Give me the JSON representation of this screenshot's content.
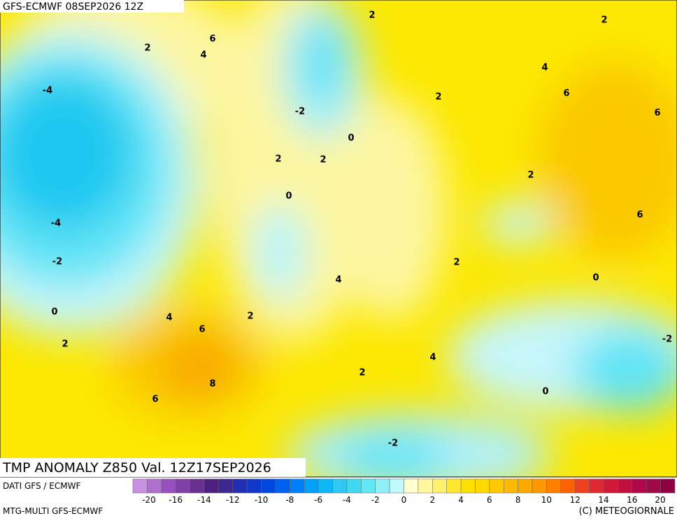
{
  "header": {
    "run": "GFS-ECMWF 08SEP2026 12Z",
    "title": "TMP ANOMALY Z850 Val. 12Z17SEP2026"
  },
  "contour_labels": [
    "2",
    "2",
    "6",
    "4",
    "2",
    "4",
    "-4",
    "6",
    "2",
    "-2",
    "6",
    "0",
    "2",
    "2",
    "2",
    "0",
    "6",
    "-4",
    "-2",
    "2",
    "0",
    "4",
    "0",
    "2",
    "4",
    "6",
    "2",
    "-2",
    "4",
    "2",
    "8",
    "0",
    "6",
    "-2"
  ],
  "footer": {
    "source": "DATI GFS / ECMWF",
    "model": "MTG-MULTI GFS-ECMWF",
    "copyright": "(C) METEOGIORNALE"
  },
  "colorbar": {
    "colors": [
      "#c890e0",
      "#b070d0",
      "#9850c0",
      "#8040a8",
      "#683090",
      "#502080",
      "#3c2890",
      "#2030b0",
      "#1038c8",
      "#0048e0",
      "#0060f0",
      "#0080f8",
      "#00a0f8",
      "#10b8f8",
      "#30c8f0",
      "#40d8f0",
      "#60e8f8",
      "#90f0f8",
      "#c0f8fc",
      "#ffffd0",
      "#fff8a0",
      "#fff070",
      "#ffe830",
      "#ffe000",
      "#ffd800",
      "#ffc800",
      "#ffb800",
      "#ffa800",
      "#ff9800",
      "#ff8000",
      "#ff6000",
      "#f04020",
      "#e02830",
      "#d01838",
      "#c01040",
      "#b00848",
      "#a00848",
      "#900040"
    ],
    "ticks": [
      -20,
      -16,
      -14,
      -12,
      -10,
      -8,
      -6,
      -4,
      -2,
      0,
      2,
      4,
      6,
      8,
      10,
      12,
      14,
      16,
      20
    ]
  }
}
